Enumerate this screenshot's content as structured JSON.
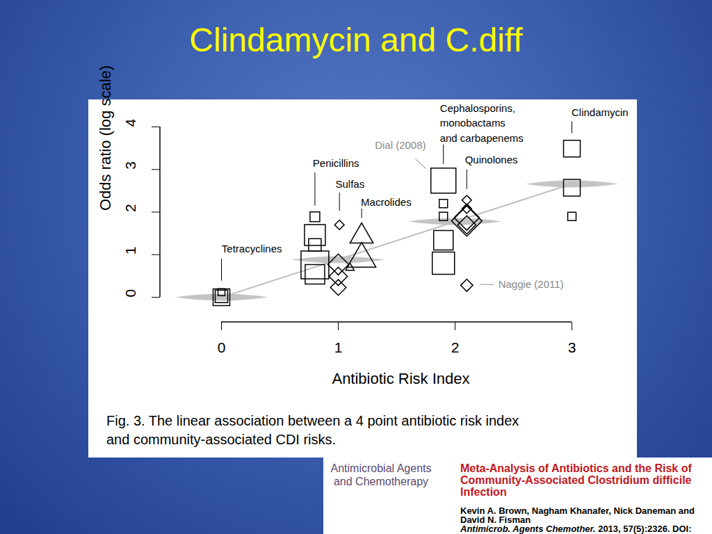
{
  "chart_data": {
    "type": "scatter",
    "title": "Clindamycin and C.diff",
    "xlabel": "Antibiotic Risk Index",
    "ylabel": "Odds ratio (log scale)",
    "xlim": [
      0,
      3
    ],
    "xticks": [
      0,
      1,
      2,
      3
    ],
    "ylim": [
      0,
      4
    ],
    "yticks": [
      0,
      1,
      2,
      3,
      4
    ],
    "series": [
      {
        "name": "Tetracyclines",
        "marker": "square",
        "color": "#000000",
        "x": [
          0,
          0,
          0
        ],
        "values": [
          0,
          0.02,
          0.12
        ],
        "sizes": [
          24,
          18,
          10
        ]
      },
      {
        "name": "Penicillins",
        "marker": "square",
        "color": "#000000",
        "x": [
          0.8,
          0.8,
          0.8,
          0.8,
          0.8
        ],
        "values": [
          1.89,
          1.46,
          1.23,
          0.76,
          0.54
        ],
        "sizes": [
          14,
          30,
          18,
          40,
          28
        ]
      },
      {
        "name": "Sulfas",
        "marker": "diamond",
        "color": "#000000",
        "x": [
          1.01,
          1,
          1,
          1
        ],
        "values": [
          1.7,
          0.77,
          0.49,
          0.23
        ],
        "sizes": [
          11,
          24,
          21,
          18
        ]
      },
      {
        "name": "Macrolides",
        "marker": "triangle",
        "color": "#000000",
        "x": [
          1.2,
          1.2,
          1.1
        ],
        "values": [
          1.43,
          0.9,
          0.69
        ],
        "sizes": [
          22,
          27,
          8
        ]
      },
      {
        "name": "Cephalosporins,\nmonobactams\nand carbapenems",
        "marker": "square",
        "color": "#000000",
        "x": [
          1.9,
          1.9,
          1.9,
          1.9,
          1.9
        ],
        "values": [
          2.74,
          2.2,
          1.9,
          1.34,
          0.8
        ],
        "sizes": [
          36,
          12,
          12,
          28,
          32
        ]
      },
      {
        "name": "Quinolones",
        "marker": "diamond",
        "color": "#000000",
        "x": [
          2.1,
          2.1,
          2.1,
          2.1,
          2.1,
          2.1
        ],
        "values": [
          2.28,
          2.08,
          1.87,
          1.79,
          1.7,
          0.28
        ],
        "sizes": [
          11,
          11,
          29,
          35,
          21,
          14
        ]
      },
      {
        "name": "Clindamycin",
        "marker": "square",
        "color": "#000000",
        "x": [
          3,
          3,
          3
        ],
        "values": [
          3.49,
          2.57,
          1.9
        ],
        "sizes": [
          24,
          24,
          12
        ]
      }
    ],
    "pooled": {
      "marker": "band",
      "line_style": "solid",
      "color": "#bebebe",
      "x": [
        0,
        1,
        2,
        3
      ],
      "values": [
        0,
        0.88,
        1.78,
        2.66
      ]
    },
    "annotations": [
      {
        "text": "Dial (2008)",
        "color": "#888888"
      },
      {
        "text": "Naggie (2011)",
        "color": "#888888"
      }
    ],
    "caption": [
      "Fig. 3. The linear association between a 4 point antibiotic risk index",
      "and community-associated CDI risks."
    ]
  },
  "citation": {
    "journal": [
      "Antimicrobial Agents",
      "and Chemotherapy"
    ],
    "title": [
      "Meta-Analysis of Antibiotics and the Risk of",
      "Community-Associated Clostridium difficile",
      "Infection"
    ],
    "authors": [
      "Kevin A. Brown, Nagham Khanafer, Nick Daneman and",
      "David N. Fisman"
    ],
    "journal_abbreviation": "Antimicrob. Agents Chemother.",
    "reference": "2013, 57(5):2326. DOI:"
  }
}
